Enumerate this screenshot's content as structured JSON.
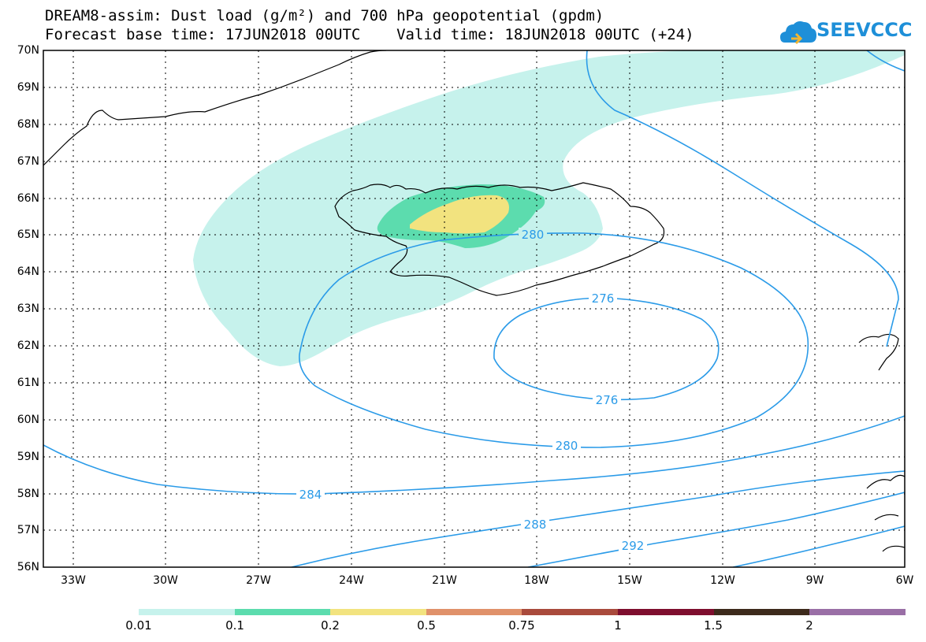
{
  "header": {
    "title_line1": "DREAM8-assim: Dust load (g/m²) and 700 hPa geopotential (gpdm)",
    "title_line2": "Forecast base time: 17JUN2018 00UTC    Valid time: 18JUN2018 00UTC (+24)",
    "logo_text": "SEEVCCC",
    "logo_icon": "cloud-logo-icon"
  },
  "map": {
    "lat_range": [
      56,
      70
    ],
    "lon_range": [
      -34.5,
      -6
    ],
    "lat_labels": [
      "70N",
      "69N",
      "68N",
      "67N",
      "66N",
      "65N",
      "64N",
      "63N",
      "62N",
      "61N",
      "60N",
      "59N",
      "58N",
      "57N",
      "56N"
    ],
    "lon_labels": [
      "33W",
      "30W",
      "27W",
      "24W",
      "21W",
      "18W",
      "15W",
      "12W",
      "9W",
      "6W"
    ],
    "gridlines": "dotted",
    "contour_color": "#2b9be8",
    "contour_labels": [
      {
        "text": "280",
        "id": "c280a"
      },
      {
        "text": "276",
        "id": "c276a"
      },
      {
        "text": "276",
        "id": "c276b"
      },
      {
        "text": "280",
        "id": "c280b"
      },
      {
        "text": "284",
        "id": "c284"
      },
      {
        "text": "288",
        "id": "c288"
      },
      {
        "text": "292",
        "id": "c292"
      }
    ]
  },
  "legend": {
    "thresholds": [
      "0.01",
      "0.1",
      "0.2",
      "0.5",
      "0.75",
      "1",
      "1.5",
      "2"
    ],
    "colors": [
      "#c6f2ec",
      "#5cdcae",
      "#f2e37f",
      "#e0916a",
      "#a94a3c",
      "#7e0e2e",
      "#3d2a1c",
      "#9a6fa6"
    ]
  }
}
